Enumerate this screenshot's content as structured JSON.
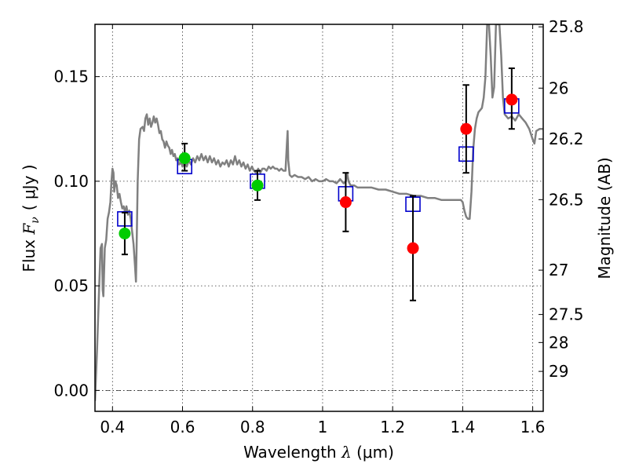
{
  "chart_data": {
    "type": "scatter",
    "xlabel": {
      "prefix": "Wavelength ",
      "symbol": "λ",
      "unit": "(μm)"
    },
    "ylabel": {
      "prefix": "Flux ",
      "symbol": "F",
      "subscript": "ν",
      "unit": "( μJy )"
    },
    "y2label": "Magnitude (AB)",
    "xlim": [
      0.35,
      1.63
    ],
    "ylim": [
      -0.01,
      0.175
    ],
    "xticks": [
      0.4,
      0.6,
      0.8,
      1.0,
      1.2,
      1.4,
      1.6
    ],
    "xtick_labels": [
      "0.4",
      "0.6",
      "0.8",
      "1",
      "1.2",
      "1.4",
      "1.6"
    ],
    "yticks": [
      0.0,
      0.05,
      0.1,
      0.15
    ],
    "ytick_labels": [
      "0.00",
      "0.05",
      "0.10",
      "0.15"
    ],
    "y2ticks": [
      {
        "label": "25.8",
        "flux": 0.1738
      },
      {
        "label": "26",
        "flux": 0.1445
      },
      {
        "label": "26.2",
        "flux": 0.1202
      },
      {
        "label": "26.5",
        "flux": 0.0912
      },
      {
        "label": "27",
        "flux": 0.0575
      },
      {
        "label": "27.5",
        "flux": 0.0363
      },
      {
        "label": "28",
        "flux": 0.0229
      },
      {
        "label": "29",
        "flux": 0.0091
      }
    ],
    "grid": true,
    "zero_line": true,
    "series": [
      {
        "kind": "template-spectrum",
        "color": "#808080",
        "points": [
          [
            0.35,
            -0.005
          ],
          [
            0.356,
            0.02
          ],
          [
            0.362,
            0.05
          ],
          [
            0.366,
            0.068
          ],
          [
            0.37,
            0.07
          ],
          [
            0.372,
            0.048
          ],
          [
            0.374,
            0.045
          ],
          [
            0.378,
            0.068
          ],
          [
            0.382,
            0.072
          ],
          [
            0.386,
            0.082
          ],
          [
            0.39,
            0.085
          ],
          [
            0.394,
            0.09
          ],
          [
            0.397,
            0.1
          ],
          [
            0.4,
            0.106
          ],
          [
            0.403,
            0.104
          ],
          [
            0.405,
            0.095
          ],
          [
            0.408,
            0.1
          ],
          [
            0.412,
            0.098
          ],
          [
            0.416,
            0.092
          ],
          [
            0.42,
            0.094
          ],
          [
            0.424,
            0.09
          ],
          [
            0.428,
            0.087
          ],
          [
            0.432,
            0.088
          ],
          [
            0.436,
            0.085
          ],
          [
            0.44,
            0.088
          ],
          [
            0.444,
            0.084
          ],
          [
            0.448,
            0.086
          ],
          [
            0.452,
            0.082
          ],
          [
            0.456,
            0.076
          ],
          [
            0.46,
            0.07
          ],
          [
            0.464,
            0.06
          ],
          [
            0.467,
            0.052
          ],
          [
            0.469,
            0.07
          ],
          [
            0.472,
            0.1
          ],
          [
            0.476,
            0.12
          ],
          [
            0.48,
            0.125
          ],
          [
            0.486,
            0.126
          ],
          [
            0.49,
            0.124
          ],
          [
            0.494,
            0.13
          ],
          [
            0.498,
            0.132
          ],
          [
            0.502,
            0.127
          ],
          [
            0.506,
            0.13
          ],
          [
            0.51,
            0.126
          ],
          [
            0.514,
            0.128
          ],
          [
            0.518,
            0.131
          ],
          [
            0.522,
            0.128
          ],
          [
            0.526,
            0.13
          ],
          [
            0.53,
            0.127
          ],
          [
            0.534,
            0.123
          ],
          [
            0.538,
            0.124
          ],
          [
            0.542,
            0.12
          ],
          [
            0.546,
            0.119
          ],
          [
            0.55,
            0.116
          ],
          [
            0.554,
            0.119
          ],
          [
            0.558,
            0.117
          ],
          [
            0.562,
            0.116
          ],
          [
            0.566,
            0.113
          ],
          [
            0.57,
            0.115
          ],
          [
            0.574,
            0.112
          ],
          [
            0.578,
            0.113
          ],
          [
            0.582,
            0.11
          ],
          [
            0.586,
            0.111
          ],
          [
            0.59,
            0.108
          ],
          [
            0.596,
            0.109
          ],
          [
            0.6,
            0.107
          ],
          [
            0.606,
            0.109
          ],
          [
            0.612,
            0.107
          ],
          [
            0.618,
            0.11
          ],
          [
            0.624,
            0.108
          ],
          [
            0.63,
            0.111
          ],
          [
            0.636,
            0.109
          ],
          [
            0.642,
            0.112
          ],
          [
            0.648,
            0.11
          ],
          [
            0.654,
            0.113
          ],
          [
            0.66,
            0.11
          ],
          [
            0.666,
            0.112
          ],
          [
            0.672,
            0.109
          ],
          [
            0.678,
            0.112
          ],
          [
            0.684,
            0.109
          ],
          [
            0.69,
            0.111
          ],
          [
            0.696,
            0.108
          ],
          [
            0.702,
            0.11
          ],
          [
            0.708,
            0.107
          ],
          [
            0.714,
            0.109
          ],
          [
            0.72,
            0.108
          ],
          [
            0.726,
            0.11
          ],
          [
            0.732,
            0.107
          ],
          [
            0.738,
            0.11
          ],
          [
            0.744,
            0.108
          ],
          [
            0.75,
            0.112
          ],
          [
            0.756,
            0.108
          ],
          [
            0.762,
            0.11
          ],
          [
            0.768,
            0.107
          ],
          [
            0.774,
            0.109
          ],
          [
            0.78,
            0.106
          ],
          [
            0.786,
            0.108
          ],
          [
            0.792,
            0.105
          ],
          [
            0.798,
            0.107
          ],
          [
            0.804,
            0.105
          ],
          [
            0.81,
            0.104
          ],
          [
            0.816,
            0.106
          ],
          [
            0.822,
            0.104
          ],
          [
            0.828,
            0.106
          ],
          [
            0.834,
            0.106
          ],
          [
            0.84,
            0.105
          ],
          [
            0.846,
            0.107
          ],
          [
            0.852,
            0.106
          ],
          [
            0.858,
            0.107
          ],
          [
            0.864,
            0.106
          ],
          [
            0.87,
            0.106
          ],
          [
            0.876,
            0.105
          ],
          [
            0.882,
            0.106
          ],
          [
            0.888,
            0.105
          ],
          [
            0.894,
            0.105
          ],
          [
            0.898,
            0.118
          ],
          [
            0.9,
            0.124
          ],
          [
            0.902,
            0.11
          ],
          [
            0.906,
            0.103
          ],
          [
            0.912,
            0.102
          ],
          [
            0.92,
            0.103
          ],
          [
            0.93,
            0.102
          ],
          [
            0.94,
            0.102
          ],
          [
            0.95,
            0.101
          ],
          [
            0.96,
            0.102
          ],
          [
            0.97,
            0.1
          ],
          [
            0.98,
            0.101
          ],
          [
            0.99,
            0.1
          ],
          [
            1.0,
            0.1
          ],
          [
            1.01,
            0.101
          ],
          [
            1.02,
            0.1
          ],
          [
            1.03,
            0.1
          ],
          [
            1.04,
            0.099
          ],
          [
            1.05,
            0.101
          ],
          [
            1.06,
            0.099
          ],
          [
            1.066,
            0.1
          ],
          [
            1.07,
            0.104
          ],
          [
            1.074,
            0.1
          ],
          [
            1.08,
            0.098
          ],
          [
            1.09,
            0.098
          ],
          [
            1.1,
            0.097
          ],
          [
            1.12,
            0.097
          ],
          [
            1.14,
            0.097
          ],
          [
            1.16,
            0.096
          ],
          [
            1.18,
            0.096
          ],
          [
            1.2,
            0.095
          ],
          [
            1.22,
            0.094
          ],
          [
            1.24,
            0.094
          ],
          [
            1.26,
            0.093
          ],
          [
            1.28,
            0.093
          ],
          [
            1.3,
            0.092
          ],
          [
            1.32,
            0.092
          ],
          [
            1.34,
            0.091
          ],
          [
            1.36,
            0.091
          ],
          [
            1.38,
            0.091
          ],
          [
            1.395,
            0.091
          ],
          [
            1.4,
            0.09
          ],
          [
            1.405,
            0.086
          ],
          [
            1.41,
            0.083
          ],
          [
            1.415,
            0.082
          ],
          [
            1.42,
            0.082
          ],
          [
            1.425,
            0.095
          ],
          [
            1.43,
            0.115
          ],
          [
            1.435,
            0.125
          ],
          [
            1.44,
            0.13
          ],
          [
            1.445,
            0.133
          ],
          [
            1.45,
            0.134
          ],
          [
            1.455,
            0.135
          ],
          [
            1.46,
            0.14
          ],
          [
            1.465,
            0.15
          ],
          [
            1.47,
            0.175
          ],
          [
            1.475,
            0.175
          ],
          [
            1.48,
            0.16
          ],
          [
            1.485,
            0.14
          ],
          [
            1.49,
            0.145
          ],
          [
            1.495,
            0.175
          ],
          [
            1.5,
            0.175
          ],
          [
            1.505,
            0.175
          ],
          [
            1.51,
            0.16
          ],
          [
            1.515,
            0.14
          ],
          [
            1.52,
            0.132
          ],
          [
            1.53,
            0.13
          ],
          [
            1.54,
            0.131
          ],
          [
            1.55,
            0.129
          ],
          [
            1.56,
            0.132
          ],
          [
            1.57,
            0.13
          ],
          [
            1.58,
            0.128
          ],
          [
            1.59,
            0.125
          ],
          [
            1.6,
            0.12
          ],
          [
            1.605,
            0.118
          ],
          [
            1.61,
            0.124
          ],
          [
            1.62,
            0.125
          ],
          [
            1.63,
            0.125
          ]
        ]
      },
      {
        "kind": "model-photometry",
        "marker": "square",
        "color": "#0000cc",
        "points": [
          {
            "x": 0.435,
            "y": 0.082
          },
          {
            "x": 0.606,
            "y": 0.107
          },
          {
            "x": 0.814,
            "y": 0.1
          },
          {
            "x": 1.066,
            "y": 0.094
          },
          {
            "x": 1.258,
            "y": 0.089
          },
          {
            "x": 1.41,
            "y": 0.113
          },
          {
            "x": 1.54,
            "y": 0.136
          }
        ]
      },
      {
        "kind": "observed-optical",
        "marker": "circle",
        "color": "#00cc00",
        "points": [
          {
            "x": 0.435,
            "y": 0.075,
            "ylo": 0.065,
            "yhi": 0.085
          },
          {
            "x": 0.606,
            "y": 0.111,
            "ylo": 0.105,
            "yhi": 0.118
          },
          {
            "x": 0.814,
            "y": 0.098,
            "ylo": 0.091,
            "yhi": 0.105
          }
        ]
      },
      {
        "kind": "observed-infrared",
        "marker": "circle",
        "color": "#ff0000",
        "points": [
          {
            "x": 1.066,
            "y": 0.09,
            "ylo": 0.076,
            "yhi": 0.104
          },
          {
            "x": 1.258,
            "y": 0.068,
            "ylo": 0.043,
            "yhi": 0.093
          },
          {
            "x": 1.41,
            "y": 0.125,
            "ylo": 0.104,
            "yhi": 0.146
          },
          {
            "x": 1.54,
            "y": 0.139,
            "ylo": 0.125,
            "yhi": 0.154
          }
        ]
      }
    ]
  }
}
